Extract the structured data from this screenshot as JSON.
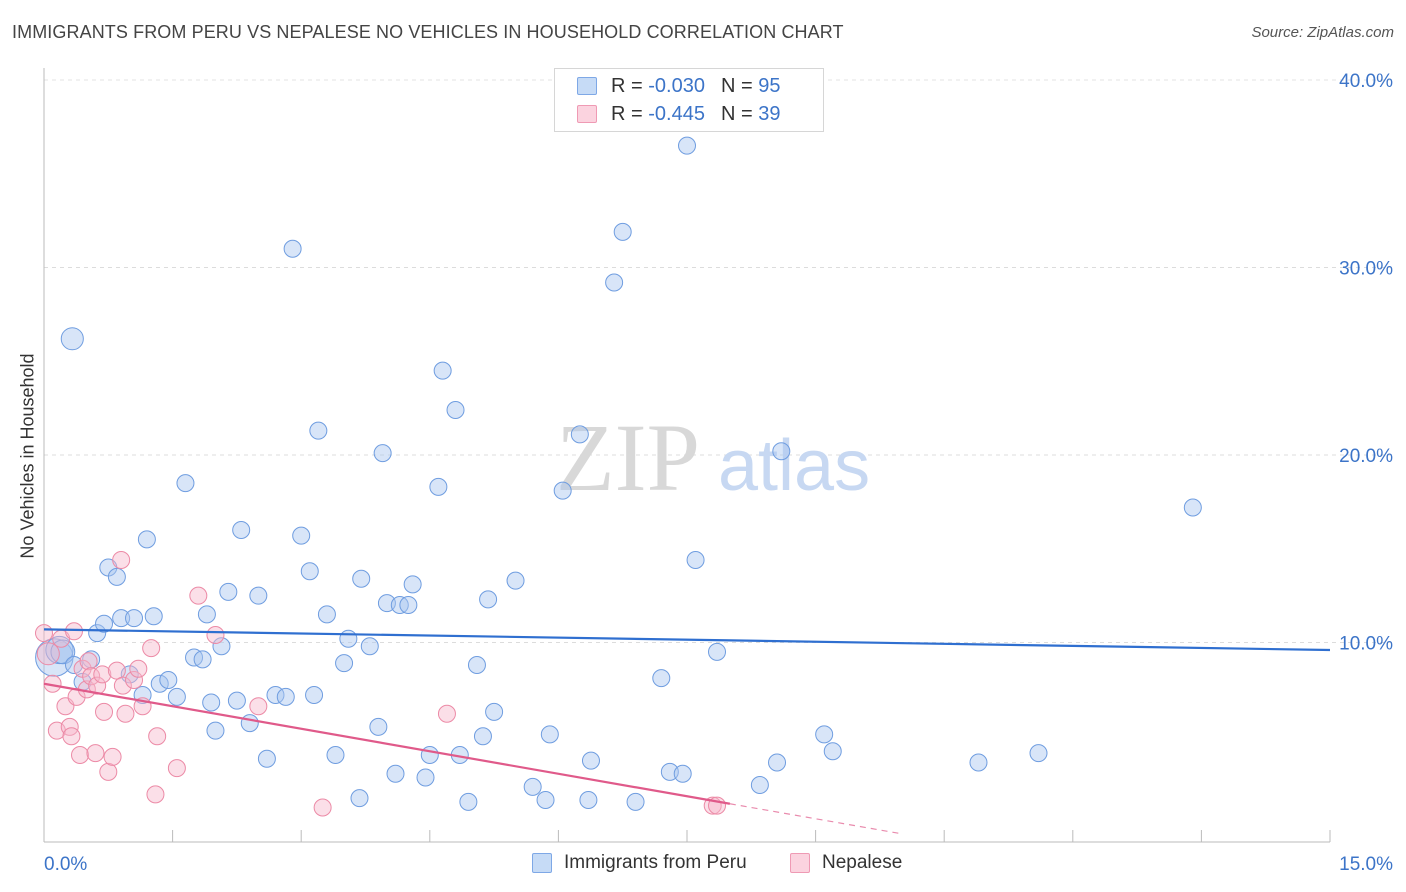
{
  "header": {
    "title": "IMMIGRANTS FROM PERU VS NEPALESE NO VEHICLES IN HOUSEHOLD CORRELATION CHART",
    "source": "Source: ZipAtlas.com"
  },
  "watermark": {
    "zip": "ZIP",
    "atlas": "atlas"
  },
  "legend": {
    "rows": [
      {
        "r_label": "R =",
        "r_value": "-0.030",
        "n_label": "N =",
        "n_value": "95",
        "color": "#a9c6f0"
      },
      {
        "r_label": "R =",
        "r_value": "-0.445",
        "n_label": "N =",
        "n_value": "39",
        "color": "#f7b8cb"
      }
    ]
  },
  "bottom_legend": [
    {
      "label": "Immigrants from Peru",
      "color": "#a9c6f0"
    },
    {
      "label": "Nepalese",
      "color": "#f7b8cb"
    }
  ],
  "chart_data": {
    "type": "scatter",
    "title": "IMMIGRANTS FROM PERU VS NEPALESE NO VEHICLES IN HOUSEHOLD CORRELATION CHART",
    "ylabel": "No Vehicles in Household",
    "xlabel": "",
    "xlim": [
      0,
      15
    ],
    "ylim": [
      0,
      40
    ],
    "x_tick_labels": [
      "0.0%",
      "15.0%"
    ],
    "y_ticks": [
      10,
      20,
      30,
      40
    ],
    "y_tick_labels": [
      "10.0%",
      "20.0%",
      "30.0%",
      "40.0%"
    ],
    "grid": true,
    "series": [
      {
        "name": "Immigrants from Peru",
        "color": "#a9c6f0",
        "stroke": "#6f9de0",
        "trend": {
          "x": [
            0,
            15
          ],
          "y": [
            10.7,
            9.6
          ],
          "color": "#2f6fd0"
        },
        "points": [
          [
            0.12,
            9.2,
            2.2
          ],
          [
            0.18,
            9.6,
            1.6
          ],
          [
            0.22,
            9.5,
            1.4
          ],
          [
            0.33,
            26.2,
            1.3
          ],
          [
            0.35,
            8.8,
            1.0
          ],
          [
            0.45,
            7.9,
            1.0
          ],
          [
            0.55,
            9.1,
            1.0
          ],
          [
            0.62,
            10.5,
            1.0
          ],
          [
            0.7,
            11.0,
            1.0
          ],
          [
            0.75,
            14.0,
            1.0
          ],
          [
            0.85,
            13.5,
            1.0
          ],
          [
            0.9,
            11.3,
            1.0
          ],
          [
            1.0,
            8.3,
            1.0
          ],
          [
            1.05,
            11.3,
            1.0
          ],
          [
            1.15,
            7.2,
            1.0
          ],
          [
            1.2,
            15.5,
            1.0
          ],
          [
            1.28,
            11.4,
            1.0
          ],
          [
            1.35,
            7.8,
            1.0
          ],
          [
            1.45,
            8.0,
            1.0
          ],
          [
            1.55,
            7.1,
            1.0
          ],
          [
            1.65,
            18.5,
            1.0
          ],
          [
            1.75,
            9.2,
            1.0
          ],
          [
            1.85,
            9.1,
            1.0
          ],
          [
            1.9,
            11.5,
            1.0
          ],
          [
            1.95,
            6.8,
            1.0
          ],
          [
            2.0,
            5.3,
            1.0
          ],
          [
            2.07,
            9.8,
            1.0
          ],
          [
            2.15,
            12.7,
            1.0
          ],
          [
            2.25,
            6.9,
            1.0
          ],
          [
            2.3,
            16.0,
            1.0
          ],
          [
            2.4,
            5.7,
            1.0
          ],
          [
            2.5,
            12.5,
            1.0
          ],
          [
            2.6,
            3.8,
            1.0
          ],
          [
            2.7,
            7.2,
            1.0
          ],
          [
            2.82,
            7.1,
            1.0
          ],
          [
            2.9,
            31.0,
            1.0
          ],
          [
            3.0,
            15.7,
            1.0
          ],
          [
            3.1,
            13.8,
            1.0
          ],
          [
            3.15,
            7.2,
            1.0
          ],
          [
            3.2,
            21.3,
            1.0
          ],
          [
            3.3,
            11.5,
            1.0
          ],
          [
            3.4,
            4.0,
            1.0
          ],
          [
            3.5,
            8.9,
            1.0
          ],
          [
            3.55,
            10.2,
            1.0
          ],
          [
            3.68,
            1.7,
            1.0
          ],
          [
            3.7,
            13.4,
            1.0
          ],
          [
            3.8,
            9.8,
            1.0
          ],
          [
            3.9,
            5.5,
            1.0
          ],
          [
            3.95,
            20.1,
            1.0
          ],
          [
            4.0,
            12.1,
            1.0
          ],
          [
            4.1,
            3.0,
            1.0
          ],
          [
            4.15,
            12.0,
            1.0
          ],
          [
            4.25,
            12.0,
            1.0
          ],
          [
            4.3,
            13.1,
            1.0
          ],
          [
            4.45,
            2.8,
            1.0
          ],
          [
            4.5,
            4.0,
            1.0
          ],
          [
            4.6,
            18.3,
            1.0
          ],
          [
            4.65,
            24.5,
            1.0
          ],
          [
            4.8,
            22.4,
            1.0
          ],
          [
            4.85,
            4.0,
            1.0
          ],
          [
            4.95,
            1.5,
            1.0
          ],
          [
            5.05,
            8.8,
            1.0
          ],
          [
            5.12,
            5.0,
            1.0
          ],
          [
            5.18,
            12.3,
            1.0
          ],
          [
            5.25,
            6.3,
            1.0
          ],
          [
            5.5,
            13.3,
            1.0
          ],
          [
            5.7,
            2.3,
            1.0
          ],
          [
            5.85,
            1.6,
            1.0
          ],
          [
            5.9,
            5.1,
            1.0
          ],
          [
            6.05,
            18.1,
            1.0
          ],
          [
            6.25,
            21.1,
            1.0
          ],
          [
            6.35,
            1.6,
            1.0
          ],
          [
            6.38,
            3.7,
            1.0
          ],
          [
            6.65,
            29.2,
            1.0
          ],
          [
            6.75,
            31.9,
            1.0
          ],
          [
            6.9,
            1.5,
            1.0
          ],
          [
            7.2,
            8.1,
            1.0
          ],
          [
            7.3,
            3.1,
            1.0
          ],
          [
            7.45,
            3.0,
            1.0
          ],
          [
            7.5,
            36.5,
            1.0
          ],
          [
            7.6,
            14.4,
            1.0
          ],
          [
            7.85,
            9.5,
            1.0
          ],
          [
            8.35,
            2.4,
            1.0
          ],
          [
            8.55,
            3.6,
            1.0
          ],
          [
            8.6,
            20.2,
            1.0
          ],
          [
            9.1,
            5.1,
            1.0
          ],
          [
            9.2,
            4.2,
            1.0
          ],
          [
            10.9,
            3.6,
            1.0
          ],
          [
            11.6,
            4.1,
            1.0
          ],
          [
            13.4,
            17.2,
            1.0
          ]
        ]
      },
      {
        "name": "Nepalese",
        "color": "#f7b8cb",
        "stroke": "#ec8aa6",
        "trend": {
          "x": [
            0,
            8.0
          ],
          "y": [
            7.8,
            1.4
          ],
          "color": "#e05a8a",
          "dash_to": [
            10.0,
            -0.2
          ]
        },
        "points": [
          [
            0.05,
            9.4,
            1.3
          ],
          [
            0.1,
            7.8,
            1.0
          ],
          [
            0.15,
            5.3,
            1.0
          ],
          [
            0.2,
            10.2,
            1.0
          ],
          [
            0.25,
            6.6,
            1.0
          ],
          [
            0.3,
            5.5,
            1.0
          ],
          [
            0.32,
            5.0,
            1.0
          ],
          [
            0.35,
            10.6,
            1.0
          ],
          [
            0.38,
            7.1,
            1.0
          ],
          [
            0.42,
            4.0,
            1.0
          ],
          [
            0.45,
            8.6,
            1.0
          ],
          [
            0.5,
            7.5,
            1.0
          ],
          [
            0.52,
            9.0,
            1.0
          ],
          [
            0.55,
            8.2,
            1.0
          ],
          [
            0.6,
            4.1,
            1.0
          ],
          [
            0.62,
            7.7,
            1.0
          ],
          [
            0.68,
            8.3,
            1.0
          ],
          [
            0.7,
            6.3,
            1.0
          ],
          [
            0.75,
            3.1,
            1.0
          ],
          [
            0.8,
            3.9,
            1.0
          ],
          [
            0.85,
            8.5,
            1.0
          ],
          [
            0.9,
            14.4,
            1.0
          ],
          [
            0.92,
            7.7,
            1.0
          ],
          [
            0.95,
            6.2,
            1.0
          ],
          [
            1.05,
            8.0,
            1.0
          ],
          [
            1.1,
            8.6,
            1.0
          ],
          [
            1.15,
            6.6,
            1.0
          ],
          [
            1.25,
            9.7,
            1.0
          ],
          [
            1.3,
            1.9,
            1.0
          ],
          [
            1.32,
            5.0,
            1.0
          ],
          [
            1.55,
            3.3,
            1.0
          ],
          [
            1.8,
            12.5,
            1.0
          ],
          [
            2.0,
            10.4,
            1.0
          ],
          [
            2.5,
            6.6,
            1.0
          ],
          [
            3.25,
            1.2,
            1.0
          ],
          [
            4.7,
            6.2,
            1.0
          ],
          [
            7.8,
            1.3,
            1.0
          ],
          [
            7.85,
            1.3,
            1.0
          ],
          [
            0.0,
            10.5,
            1.0
          ]
        ]
      }
    ]
  }
}
